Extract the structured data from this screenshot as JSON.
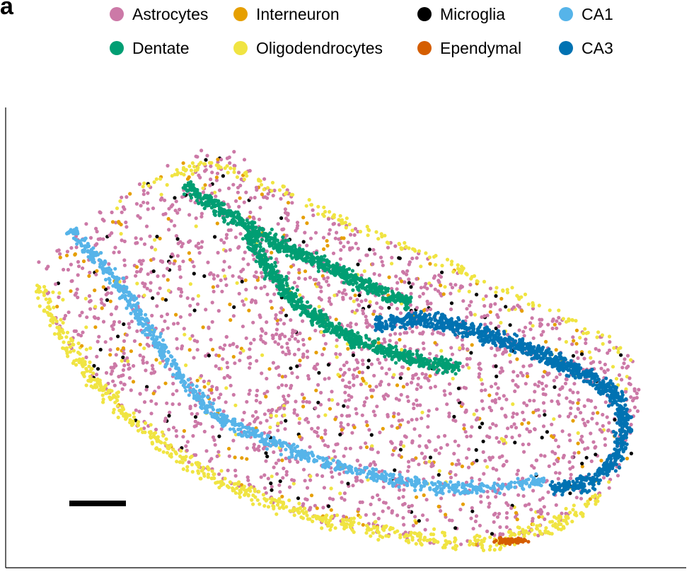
{
  "panel_label": "a",
  "chart_data": {
    "type": "scatter",
    "title": "",
    "xlabel": "",
    "ylabel": "",
    "grid": false,
    "axes": "left and bottom spines only, no ticks",
    "legend_position": "top",
    "scale_bar": true,
    "series": [
      {
        "name": "Astrocytes",
        "color": "#cc79a7"
      },
      {
        "name": "Interneuron",
        "color": "#e69f00"
      },
      {
        "name": "Microglia",
        "color": "#000000"
      },
      {
        "name": "CA1",
        "color": "#56b4e9"
      },
      {
        "name": "Dentate",
        "color": "#009e73"
      },
      {
        "name": "Oligodendrocytes",
        "color": "#f0e442"
      },
      {
        "name": "Ependymal",
        "color": "#d55e00"
      },
      {
        "name": "CA3",
        "color": "#0072b2"
      }
    ]
  }
}
